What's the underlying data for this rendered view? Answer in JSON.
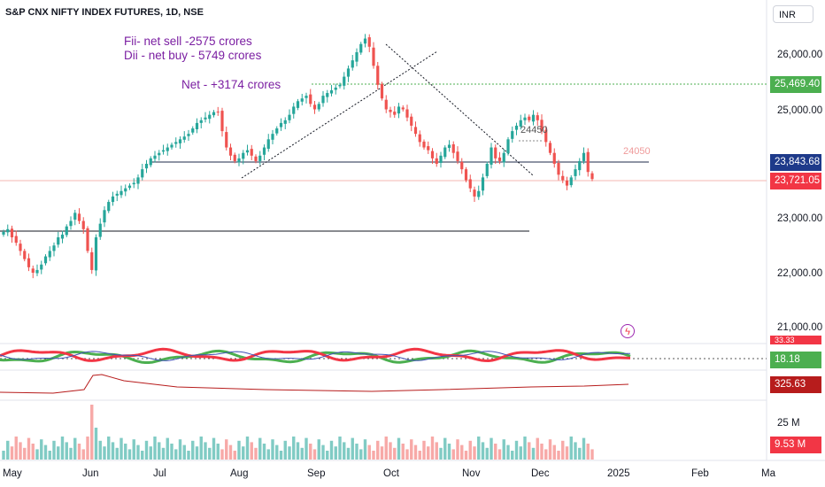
{
  "title": "S&P CNX NIFTY INDEX FUTURES, 1D, NSE",
  "currency": "INR",
  "annotations": {
    "fii": "Fii-  net sell -2575 crores",
    "dii": "Dii - net buy  - 5749 crores",
    "net": "Net - +3174 crores",
    "level_24450": "24450",
    "level_24050": "24050"
  },
  "price_axis": [
    "26,000.00",
    "25,000.00",
    "23,000.00",
    "22,000.00",
    "21,000.00"
  ],
  "badges": {
    "resistance": "25,469.40",
    "support": "23,843.68",
    "last_price": "23,721.05",
    "oscillator": "18.18",
    "oscillator_top": "33.33",
    "lower_indicator": "325.63",
    "volume": "9.53 M"
  },
  "volume_axis": "25 M",
  "time_axis": [
    "May",
    "Jun",
    "Jul",
    "Aug",
    "Sep",
    "Oct",
    "Nov",
    "Dec",
    "2025",
    "Feb",
    "Ma"
  ],
  "colors": {
    "up": "#26a69a",
    "down": "#ef5350",
    "annotation": "#7b1fa2",
    "green_line": "#4caf50",
    "red_line": "#f23645",
    "blue_line": "#3f51b5",
    "dark_red": "#b71c1c"
  },
  "chart_data": {
    "type": "candlestick",
    "title": "S&P CNX NIFTY INDEX FUTURES, 1D, NSE",
    "ylim": [
      20700,
      26700
    ],
    "close": [
      22750,
      22800,
      22650,
      22550,
      22400,
      22250,
      22100,
      22000,
      22050,
      22150,
      22300,
      22400,
      22500,
      22650,
      22700,
      22850,
      22950,
      23100,
      22950,
      22800,
      22400,
      22050,
      22650,
      22900,
      23150,
      23300,
      23400,
      23450,
      23500,
      23550,
      23600,
      23650,
      23750,
      23900,
      24000,
      24100,
      24150,
      24200,
      24250,
      24300,
      24350,
      24400,
      24450,
      24500,
      24550,
      24650,
      24750,
      24800,
      24850,
      24900,
      24950,
      24950,
      24600,
      24300,
      24150,
      24050,
      24100,
      24200,
      24250,
      24150,
      24050,
      24150,
      24300,
      24450,
      24550,
      24650,
      24750,
      24800,
      24900,
      25050,
      25150,
      25200,
      25250,
      25100,
      25000,
      25100,
      25250,
      25300,
      25350,
      25400,
      25450,
      25600,
      25750,
      25900,
      26050,
      26200,
      26300,
      26150,
      25800,
      25450,
      25200,
      25000,
      24950,
      24900,
      25050,
      25000,
      24850,
      24700,
      24550,
      24400,
      24300,
      24250,
      24100,
      24000,
      24150,
      24300,
      24350,
      24200,
      24050,
      23900,
      23700,
      23550,
      23400,
      23500,
      23750,
      24000,
      24300,
      24100,
      24050,
      24200,
      24450,
      24600,
      24700,
      24800,
      24850,
      24800,
      24900,
      24800,
      24600,
      24400,
      24200,
      24000,
      23800,
      23700,
      23600,
      23750,
      23900,
      24050,
      24200,
      23850,
      23720
    ]
  }
}
